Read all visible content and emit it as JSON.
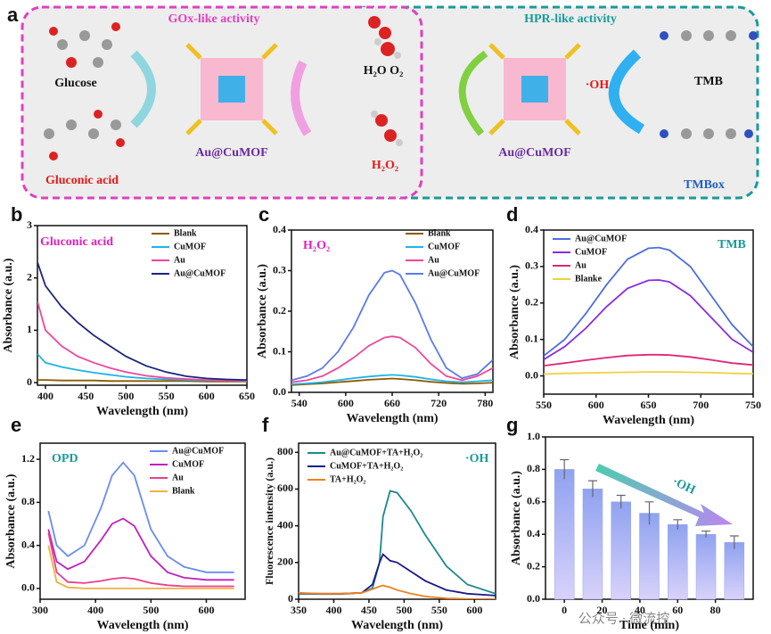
{
  "diagram": {
    "panel": "a",
    "left_title": "GOx-like activity",
    "right_title": "HPR-like activity",
    "glucose": "Glucose",
    "gluconic": "Gluconic acid",
    "catalyst_left": "Au@CuMOF",
    "catalyst_right": "Au@CuMOF",
    "products": "H₂O O₂",
    "h2o2": "H₂O₂",
    "oh": "·OH",
    "tmb": "TMB",
    "tmbox": "TMBox"
  },
  "watermark": "公众号 · 微流控",
  "chart_data": [
    {
      "type": "line",
      "panel": "b",
      "annotation": "Gluconic acid",
      "xlabel": "Wavelength (nm)",
      "ylabel": "Absorbance (a.u.)",
      "x": [
        390,
        400,
        420,
        440,
        460,
        480,
        500,
        525,
        550,
        575,
        600,
        625,
        650
      ],
      "xlim": [
        390,
        650
      ],
      "xticks": [
        400,
        450,
        500,
        550,
        600,
        650
      ],
      "ylim": [
        -0.05,
        3
      ],
      "yticks": [
        0,
        1,
        2,
        3
      ],
      "series": [
        {
          "name": "Blank",
          "color": "#8b5a00",
          "values": [
            0.05,
            0.05,
            0.04,
            0.04,
            0.04,
            0.03,
            0.03,
            0.03,
            0.03,
            0.03,
            0.02,
            0.02,
            0.02
          ]
        },
        {
          "name": "CuMOF",
          "color": "#1fb3e6",
          "values": [
            0.55,
            0.38,
            0.3,
            0.24,
            0.19,
            0.15,
            0.11,
            0.08,
            0.06,
            0.05,
            0.04,
            0.04,
            0.03
          ]
        },
        {
          "name": "Au",
          "color": "#f0479a",
          "values": [
            1.55,
            1.0,
            0.7,
            0.5,
            0.38,
            0.28,
            0.2,
            0.13,
            0.09,
            0.07,
            0.05,
            0.04,
            0.04
          ]
        },
        {
          "name": "Au@CuMOF",
          "color": "#1a237e",
          "values": [
            2.3,
            1.85,
            1.45,
            1.15,
            0.9,
            0.7,
            0.5,
            0.32,
            0.2,
            0.12,
            0.08,
            0.06,
            0.05
          ]
        }
      ]
    },
    {
      "type": "line",
      "panel": "c",
      "annotation": "H₂O₂",
      "xlabel": "Wavelength (nm)",
      "ylabel": "Absorbance (a.u.)",
      "x": [
        530,
        550,
        570,
        590,
        610,
        630,
        650,
        660,
        670,
        690,
        710,
        730,
        750,
        770,
        790
      ],
      "xlim": [
        530,
        790
      ],
      "xticks": [
        540,
        600,
        660,
        720,
        780
      ],
      "ylim": [
        0,
        0.4
      ],
      "yticks": [
        {
          "value": 0,
          "label": "0.0"
        },
        0.1,
        0.2,
        0.3,
        0.4
      ],
      "series": [
        {
          "name": "Blank",
          "color": "#8b5a00",
          "values": [
            0.018,
            0.02,
            0.022,
            0.025,
            0.028,
            0.031,
            0.033,
            0.034,
            0.033,
            0.03,
            0.026,
            0.023,
            0.021,
            0.022,
            0.024
          ]
        },
        {
          "name": "CuMOF",
          "color": "#1fb3e6",
          "values": [
            0.02,
            0.022,
            0.025,
            0.03,
            0.035,
            0.039,
            0.042,
            0.043,
            0.042,
            0.038,
            0.032,
            0.027,
            0.025,
            0.027,
            0.03
          ]
        },
        {
          "name": "Au",
          "color": "#f0479a",
          "values": [
            0.025,
            0.03,
            0.04,
            0.06,
            0.085,
            0.115,
            0.135,
            0.138,
            0.135,
            0.11,
            0.07,
            0.04,
            0.03,
            0.04,
            0.06
          ]
        },
        {
          "name": "Au@CuMOF",
          "color": "#5b7be8",
          "values": [
            0.03,
            0.04,
            0.06,
            0.1,
            0.16,
            0.24,
            0.295,
            0.3,
            0.29,
            0.22,
            0.13,
            0.06,
            0.035,
            0.045,
            0.08
          ]
        }
      ]
    },
    {
      "type": "line",
      "panel": "d",
      "annotation": "TMB",
      "xlabel": "Wavelength (nm)",
      "ylabel": "Absorbance (a.u.)",
      "x": [
        550,
        570,
        590,
        610,
        630,
        650,
        660,
        670,
        690,
        710,
        730,
        750
      ],
      "xlim": [
        550,
        750
      ],
      "xticks": [
        550,
        600,
        650,
        700,
        750
      ],
      "ylim": [
        -0.05,
        0.4
      ],
      "yticks": [
        {
          "value": 0,
          "label": "0.0"
        },
        0.1,
        0.2,
        0.3,
        0.4
      ],
      "series": [
        {
          "name": "Au@CuMOF",
          "color": "#4a6ee0",
          "values": [
            0.055,
            0.1,
            0.17,
            0.25,
            0.32,
            0.35,
            0.352,
            0.345,
            0.3,
            0.22,
            0.14,
            0.08
          ]
        },
        {
          "name": "CuMOF",
          "color": "#8a2be2",
          "values": [
            0.045,
            0.08,
            0.13,
            0.19,
            0.24,
            0.262,
            0.263,
            0.258,
            0.22,
            0.16,
            0.1,
            0.065
          ]
        },
        {
          "name": "Au",
          "color": "#e0247a",
          "values": [
            0.028,
            0.035,
            0.043,
            0.05,
            0.056,
            0.058,
            0.058,
            0.057,
            0.052,
            0.044,
            0.035,
            0.03
          ]
        },
        {
          "name": "Blanke",
          "color": "#f0d040",
          "values": [
            0.005,
            0.007,
            0.008,
            0.009,
            0.01,
            0.011,
            0.011,
            0.011,
            0.01,
            0.009,
            0.007,
            0.006
          ]
        }
      ]
    },
    {
      "type": "line",
      "panel": "e",
      "annotation": "OPD",
      "xlabel": "Wavelength (nm)",
      "ylabel": "Absorbance (a.u.)",
      "x": [
        315,
        330,
        350,
        380,
        410,
        430,
        450,
        470,
        500,
        530,
        560,
        600,
        650
      ],
      "xlim": [
        300,
        670
      ],
      "xticks": [
        300,
        400,
        500,
        600
      ],
      "ylim": [
        -0.1,
        1.35
      ],
      "yticks": [
        {
          "value": 0,
          "label": "0.0"
        },
        0.4,
        0.8,
        1.2
      ],
      "series": [
        {
          "name": "Au@CuMOF",
          "color": "#6a8cf0",
          "values": [
            0.72,
            0.4,
            0.3,
            0.4,
            0.75,
            1.05,
            1.17,
            1.05,
            0.55,
            0.3,
            0.2,
            0.15,
            0.15
          ]
        },
        {
          "name": "CuMOF",
          "color": "#c020c0",
          "values": [
            0.55,
            0.25,
            0.18,
            0.25,
            0.45,
            0.6,
            0.65,
            0.58,
            0.3,
            0.15,
            0.1,
            0.08,
            0.08
          ]
        },
        {
          "name": "Au",
          "color": "#e8408a",
          "values": [
            0.52,
            0.15,
            0.06,
            0.05,
            0.07,
            0.09,
            0.1,
            0.09,
            0.05,
            0.03,
            0.02,
            0.02,
            0.02
          ]
        },
        {
          "name": "Blank",
          "color": "#f0b040",
          "values": [
            0.4,
            0.06,
            0.01,
            0,
            0,
            0,
            0,
            0,
            0,
            0,
            0,
            0,
            0
          ]
        }
      ]
    },
    {
      "type": "line",
      "panel": "f",
      "annotation": "·OH",
      "xlabel": "Wavelength (nm)",
      "ylabel": "Fluorescence intensity (a.u.)",
      "x": [
        350,
        380,
        410,
        440,
        455,
        465,
        470,
        480,
        490,
        510,
        530,
        560,
        590,
        630
      ],
      "xlim": [
        350,
        630
      ],
      "xticks": [
        350,
        400,
        450,
        500,
        550,
        600
      ],
      "ylim": [
        0,
        850
      ],
      "yticks": [
        0,
        200,
        400,
        600,
        800
      ],
      "series": [
        {
          "name": "Au@CuMOF+TA+H₂O₂",
          "color": "#1a8a8a",
          "values": [
            30,
            28,
            28,
            35,
            60,
            200,
            450,
            590,
            580,
            480,
            350,
            180,
            80,
            30
          ]
        },
        {
          "name": "CuMOF+TA+H₂O₂",
          "color": "#1a1a8a",
          "values": [
            32,
            30,
            30,
            35,
            80,
            200,
            245,
            210,
            200,
            150,
            100,
            50,
            30,
            20
          ]
        },
        {
          "name": "TA+H₂O₂",
          "color": "#f08020",
          "values": [
            35,
            30,
            30,
            35,
            55,
            70,
            75,
            65,
            50,
            30,
            15,
            5,
            2,
            0
          ]
        }
      ]
    },
    {
      "type": "bar",
      "panel": "g",
      "annotation": "·OH",
      "xlabel": "Time (min)",
      "ylabel": "Absorbance (a.u.)",
      "color": "#98a6ef",
      "x": [
        0,
        15,
        30,
        45,
        60,
        75,
        90
      ],
      "values": [
        0.8,
        0.68,
        0.6,
        0.53,
        0.46,
        0.4,
        0.35
      ],
      "errors": [
        0.06,
        0.05,
        0.04,
        0.07,
        0.03,
        0.02,
        0.04
      ],
      "xlim": [
        -10,
        100
      ],
      "xticks": [
        0,
        20,
        40,
        60,
        80
      ],
      "ylim": [
        0,
        1.0
      ],
      "yticks": [
        {
          "value": 0,
          "label": "0.0"
        },
        0.2,
        0.4,
        0.6,
        0.8,
        {
          "value": 1,
          "label": "1.0"
        }
      ]
    }
  ]
}
